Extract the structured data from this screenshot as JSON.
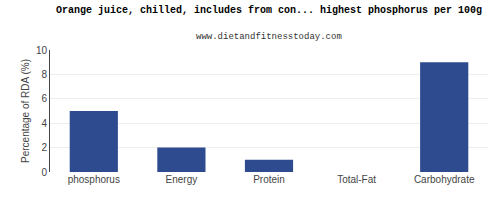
{
  "chart_data": {
    "type": "bar",
    "title": "Orange juice, chilled, includes from con... highest phosphorus per 100g",
    "subtitle": "www.dietandfitnesstoday.com",
    "categories": [
      "phosphorus",
      "Energy",
      "Protein",
      "Total-Fat",
      "Carbohydrate"
    ],
    "values": [
      5.0,
      2.0,
      1.0,
      0.0,
      9.0
    ],
    "color": "#2e4b8f",
    "ylabel": "Percentage of RDA (%)",
    "ylim": [
      0,
      10
    ],
    "yticks": [
      0,
      2,
      4,
      6,
      8,
      10
    ],
    "grid": true
  }
}
